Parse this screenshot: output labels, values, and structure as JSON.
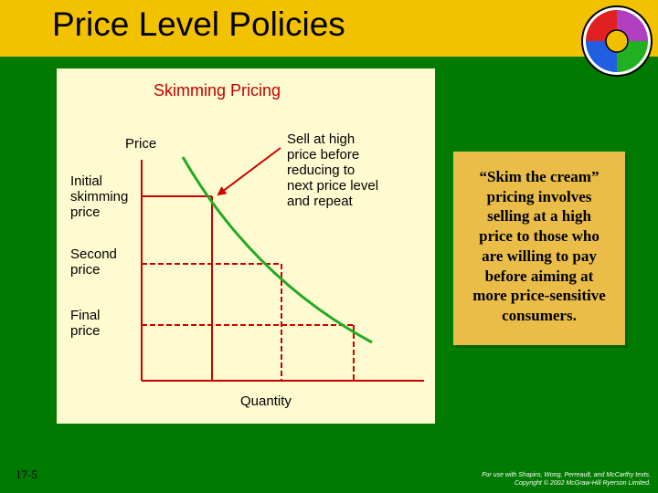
{
  "slide": {
    "title": "Price Level Policies",
    "slide_number": "17-5",
    "footer_line1": "For use with Shapiro, Wong, Perreault, and McCarthy texts.",
    "footer_line2": "Copyright © 2002 McGraw-Hill Ryerson Limited."
  },
  "colors": {
    "background": "#007a00",
    "title_bar": "#f2c200",
    "panel": "#fffbd0",
    "curve": "#22aa22",
    "lines": "#cc0000",
    "quote_box": "#e9bd47",
    "wheel_segments": [
      "#e02020",
      "#2060e0",
      "#20b020",
      "#b040c0"
    ],
    "wheel_center": "#f0c000"
  },
  "diagram": {
    "title": "Skimming Pricing",
    "y_axis_label": "Price",
    "x_axis_label": "Quantity",
    "price_levels": [
      {
        "label_line1": "Initial",
        "label_line2": "skimming",
        "label_line3": "price"
      },
      {
        "label_line1": "Second",
        "label_line2": "price"
      },
      {
        "label_line1": "Final",
        "label_line2": "price"
      }
    ],
    "annotation": {
      "line1": "Sell at high",
      "line2": "price before",
      "line3": "reducing to",
      "line4": "next price level",
      "line5": "and repeat"
    }
  },
  "quote": {
    "line1": "“Skim the cream”",
    "line2": "pricing involves",
    "line3": "selling at a high",
    "line4": "price to those who",
    "line5": "are willing to pay",
    "line6": "before aiming at",
    "line7": "more price-sensitive",
    "line8": "consumers."
  }
}
